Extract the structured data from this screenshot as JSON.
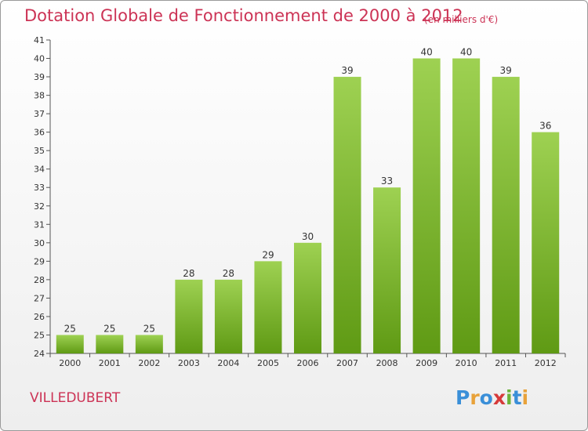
{
  "title": "Dotation Globale de Fonctionnement de 2000 à 2012",
  "subtitle": "(en milliers d'€)",
  "commune": "VILLEDUBERT",
  "logo_text": "Proxiti",
  "colors": {
    "title": "#cc3355",
    "bar_light": "#9ed152",
    "bar_dark": "#5f9a14"
  },
  "chart_data": {
    "type": "bar",
    "title": "Dotation Globale de Fonctionnement de 2000 à 2012",
    "subtitle": "(en milliers d'€)",
    "categories": [
      "2000",
      "2001",
      "2002",
      "2003",
      "2004",
      "2005",
      "2006",
      "2007",
      "2008",
      "2009",
      "2010",
      "2011",
      "2012"
    ],
    "values": [
      25,
      25,
      25,
      28,
      28,
      29,
      30,
      39,
      33,
      40,
      40,
      39,
      36
    ],
    "ylim": [
      24,
      41
    ],
    "yticks": [
      24,
      25,
      26,
      27,
      28,
      29,
      30,
      31,
      32,
      33,
      34,
      35,
      36,
      37,
      38,
      39,
      40,
      41
    ],
    "grid": false,
    "legend": "none"
  }
}
